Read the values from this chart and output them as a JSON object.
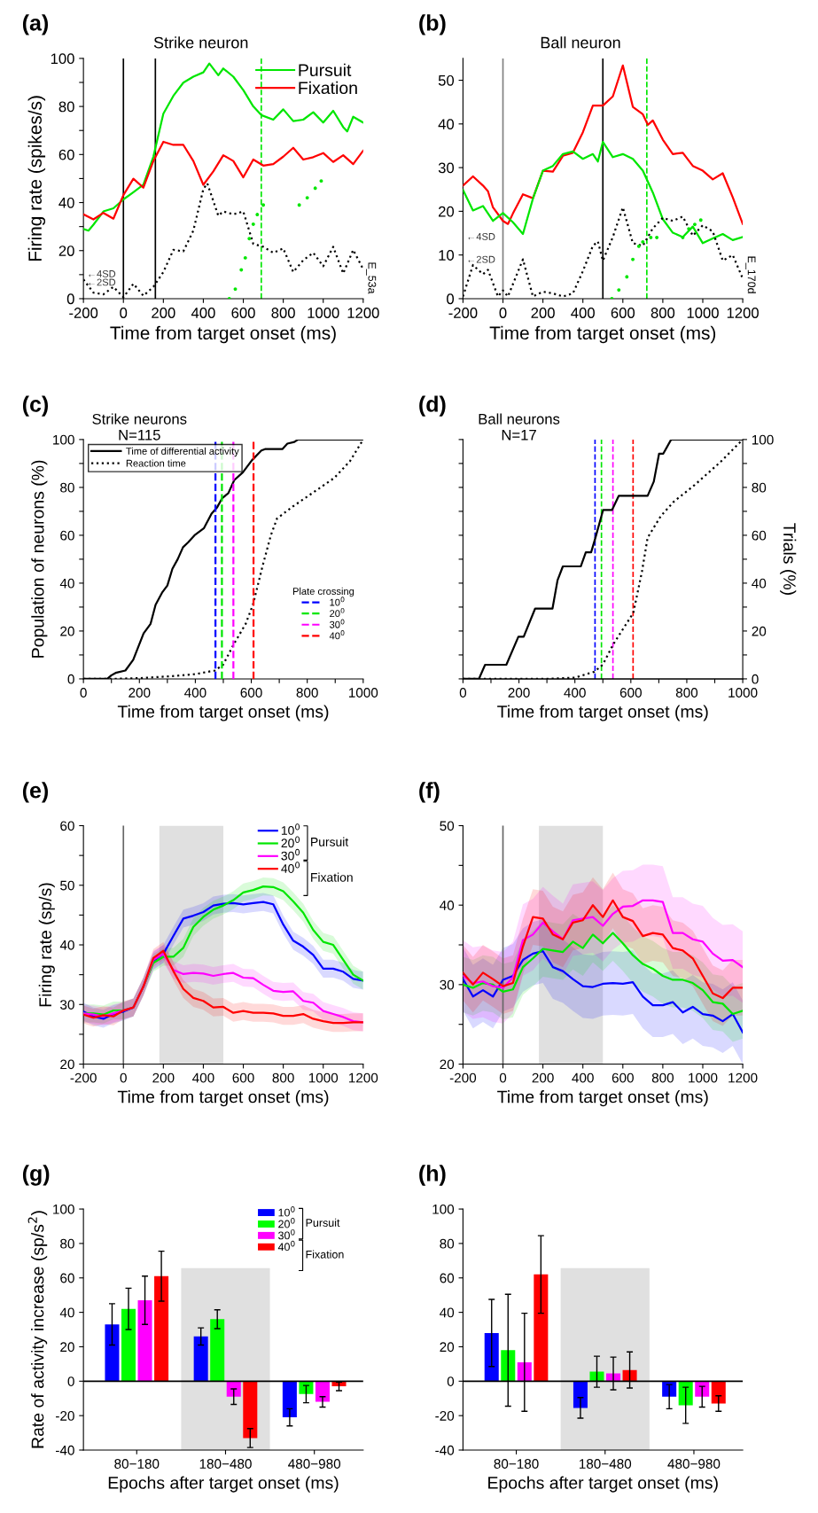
{
  "chart_data": [
    {
      "type": "line",
      "title": "(a)",
      "subtitle": "Strike neuron",
      "xlabel": "Time from target onset (ms)",
      "ylabel": "Firing rate (spikes/s)",
      "xlim": [
        -200,
        1200
      ],
      "xticks": [
        -200,
        0,
        200,
        400,
        600,
        800,
        1000,
        1200
      ],
      "ylim": [
        0,
        100
      ],
      "yticks": [
        0,
        {
          "value": 10,
          "label": null
        },
        20,
        {
          "value": 30,
          "label": null
        },
        40,
        {
          "value": 50,
          "label": null
        },
        60,
        {
          "value": 70,
          "label": null
        },
        80,
        {
          "value": 90,
          "label": null
        },
        100
      ],
      "legend": "top right",
      "series": [
        {
          "name": "Pursuit",
          "color": "#00e600",
          "x": [
            -200,
            -175,
            -150,
            -100,
            -50,
            0,
            50,
            100,
            150,
            200,
            250,
            300,
            350,
            400,
            430,
            475,
            500,
            550,
            600,
            650,
            690,
            750,
            800,
            850,
            900,
            950,
            1000,
            1050,
            1100,
            1120,
            1150,
            1200
          ],
          "values": [
            29,
            28.3,
            30.8,
            36.3,
            37.6,
            41.3,
            44.3,
            47.4,
            59.1,
            77,
            84.4,
            89.9,
            92.4,
            94.2,
            97.9,
            93,
            95.8,
            92.4,
            86.8,
            80,
            76.4,
            74.5,
            78.8,
            73.9,
            74.5,
            77.6,
            73.3,
            78.2,
            71.4,
            69.6,
            75.7,
            73.3
          ]
        },
        {
          "name": "Fixation",
          "color": "#ff0000",
          "x": [
            -200,
            -150,
            -100,
            -50,
            0,
            50,
            100,
            150,
            200,
            250,
            300,
            350,
            400,
            450,
            500,
            550,
            600,
            650,
            700,
            750,
            800,
            850,
            900,
            950,
            1000,
            1050,
            1100,
            1150,
            1200
          ],
          "values": [
            35.1,
            33,
            35.7,
            33.3,
            43.1,
            49.9,
            46.2,
            57.3,
            65.3,
            64,
            64,
            57.3,
            47.4,
            53,
            59.7,
            57.3,
            50.5,
            57.9,
            55.4,
            56,
            59.1,
            62.8,
            57.9,
            58.9,
            60.6,
            56.9,
            59.7,
            56,
            61.6
          ]
        },
        {
          "color": "#000000",
          "line_style": "dotted",
          "x": [
            -200,
            -150,
            -100,
            -50,
            0,
            50,
            100,
            150,
            200,
            250,
            300,
            350,
            400,
            420,
            475,
            500,
            550,
            600,
            650,
            700,
            750,
            800,
            850,
            900,
            950,
            1000,
            1050,
            1100,
            1150,
            1200
          ],
          "values": [
            8,
            2.5,
            1.8,
            4.9,
            0.6,
            6.2,
            1.2,
            4.9,
            11.1,
            20.3,
            19.7,
            28.3,
            45.6,
            48,
            34.5,
            36.3,
            35.1,
            36.3,
            22.8,
            21.6,
            19.1,
            20.9,
            11.1,
            16,
            19.1,
            13.5,
            21.6,
            10.5,
            20.3,
            12.3
          ]
        },
        {
          "type": "scatter",
          "marker": "circle",
          "color": "#00e600",
          "x": [
            530,
            560,
            590,
            610,
            630,
            650,
            670,
            700,
            880,
            920,
            960,
            990
          ],
          "values": [
            0,
            4,
            12,
            17,
            25,
            31,
            35,
            39,
            39,
            42,
            46,
            49
          ]
        }
      ],
      "ref_lines": [
        {
          "axis": "x",
          "value": 0,
          "color": "#000000"
        },
        {
          "axis": "x",
          "value": 160,
          "color": "#000000"
        },
        {
          "axis": "x",
          "value": 690,
          "color": "#00e600",
          "line_style": "dashed"
        }
      ],
      "annotations": [
        "←4SD",
        "←2SD",
        "E_53a"
      ]
    },
    {
      "type": "line",
      "title": "(b)",
      "subtitle": "Ball neuron",
      "xlabel": "Time from target onset (ms)",
      "xlim": [
        -200,
        1200
      ],
      "xticks": [
        -200,
        0,
        200,
        400,
        600,
        800,
        1000,
        1200
      ],
      "ylim": [
        0,
        55
      ],
      "yticks": [
        0,
        10,
        20,
        30,
        40,
        50
      ],
      "series": [
        {
          "color": "#ff0000",
          "x": [
            -200,
            -150,
            -100,
            -75,
            -50,
            0,
            25,
            50,
            100,
            150,
            200,
            250,
            300,
            350,
            400,
            450,
            500,
            550,
            600,
            650,
            700,
            725,
            750,
            800,
            850,
            900,
            950,
            1000,
            1050,
            1100,
            1150,
            1200
          ],
          "values": [
            25.9,
            28,
            25.9,
            24.6,
            20.9,
            17.8,
            17.1,
            19.5,
            23.9,
            23,
            29.3,
            29.1,
            32.7,
            33.4,
            38.1,
            44.2,
            44.2,
            46.3,
            53.4,
            43.9,
            42.2,
            39.8,
            40.8,
            36.4,
            33.1,
            33.4,
            30.4,
            29.3,
            27.3,
            28.7,
            23.2,
            17.1
          ]
        },
        {
          "color": "#00e600",
          "x": [
            -200,
            -150,
            -100,
            -50,
            0,
            50,
            100,
            150,
            200,
            250,
            300,
            350,
            400,
            450,
            475,
            500,
            550,
            600,
            650,
            700,
            750,
            800,
            850,
            900,
            950,
            1000,
            1050,
            1100,
            1150,
            1200
          ],
          "values": [
            24.9,
            20.2,
            21.2,
            17.8,
            19.6,
            17.5,
            14.8,
            22.9,
            29.3,
            30.4,
            33.1,
            33.7,
            32,
            33.1,
            31.4,
            35.9,
            32.4,
            33.1,
            32,
            29.3,
            24.3,
            18.2,
            15.1,
            14.1,
            16.5,
            12.7,
            13.8,
            14.8,
            13.4,
            14.1
          ]
        },
        {
          "color": "#000000",
          "line_style": "dotted",
          "x": [
            -200,
            -150,
            -100,
            -75,
            -25,
            0,
            25,
            100,
            150,
            200,
            250,
            300,
            350,
            400,
            450,
            475,
            500,
            550,
            600,
            650,
            700,
            750,
            800,
            850,
            900,
            950,
            1000,
            1050,
            1100,
            1150,
            1200
          ],
          "values": [
            0.5,
            7.7,
            5.6,
            6.6,
            0.5,
            1.9,
            0.5,
            9,
            0.5,
            1.6,
            1.2,
            0.5,
            1.2,
            6.3,
            12.1,
            13.1,
            8.7,
            14.1,
            20.9,
            12.7,
            12.1,
            16.1,
            18.5,
            17.8,
            18.8,
            14.4,
            16.8,
            15.4,
            8.7,
            10,
            4.6
          ]
        },
        {
          "type": "scatter",
          "marker": "circle",
          "color": "#00e600",
          "x": [
            545,
            580,
            620,
            650,
            680,
            700,
            740,
            770,
            900,
            930,
            960,
            990
          ],
          "values": [
            0,
            2,
            5,
            9,
            12,
            13,
            14,
            14,
            14,
            16,
            17,
            18
          ]
        }
      ],
      "ref_lines": [
        {
          "axis": "x",
          "value": 0,
          "color": "#808080"
        },
        {
          "axis": "x",
          "value": 500,
          "color": "#000000"
        },
        {
          "axis": "x",
          "value": 720,
          "color": "#00e600",
          "line_style": "dashed"
        }
      ],
      "annotations": [
        "←4SD",
        "←2SD",
        "E_170d"
      ]
    },
    {
      "type": "line",
      "title": "(c)",
      "subtitle": "Strike neurons\nN=115",
      "xlabel": "Time from target onset (ms)",
      "ylabel": "Population of neurons (%)",
      "xlim": [
        0,
        1000
      ],
      "xticks": [
        0,
        {
          "value": 100,
          "label": null
        },
        200,
        {
          "value": 300,
          "label": null
        },
        400,
        {
          "value": 500,
          "label": null
        },
        600,
        {
          "value": 700,
          "label": null
        },
        800,
        {
          "value": 900,
          "label": null
        },
        1000
      ],
      "ylim": [
        0,
        100
      ],
      "yticks": [
        0,
        {
          "value": 10,
          "label": null
        },
        20,
        {
          "value": 30,
          "label": null
        },
        40,
        {
          "value": 50,
          "label": null
        },
        60,
        {
          "value": 70,
          "label": null
        },
        80,
        {
          "value": 90,
          "label": null
        },
        100
      ],
      "legend": "top left",
      "legend_title": "Plate crossing",
      "series": [
        {
          "name": "Time of differential activity",
          "color": "#000000",
          "x": [
            0,
            85,
            100,
            115,
            150,
            178,
            215,
            240,
            258,
            281,
            300,
            318,
            337,
            356,
            374,
            397,
            431,
            458,
            477,
            496,
            518,
            539,
            570,
            602,
            636,
            649,
            711,
            729,
            754,
            767,
            1000
          ],
          "values": [
            0,
            0,
            1.5,
            2.5,
            3.5,
            8,
            19,
            23,
            31,
            36,
            39,
            46,
            50,
            55,
            57,
            60,
            63,
            69,
            71.5,
            75.5,
            77.6,
            83,
            86.3,
            91.3,
            95.4,
            96,
            96,
            98.3,
            99,
            100,
            100
          ]
        },
        {
          "name": "Reaction time",
          "color": "#000000",
          "line_style": "dotted",
          "x": [
            0,
            100,
            200,
            300,
            400,
            470,
            500,
            535,
            580,
            606,
            640,
            670,
            692,
            748,
            823,
            897,
            953,
            1000
          ],
          "values": [
            0,
            0,
            0.3,
            1,
            2,
            3.5,
            6,
            14,
            23,
            31,
            47,
            60,
            67,
            72,
            78,
            84,
            91,
            100
          ]
        },
        {
          "name": "10$^{0}$",
          "color": "#0000ff",
          "line_style": "dashed",
          "x": [
            472,
            472
          ],
          "values": [
            0,
            100
          ]
        },
        {
          "name": "20$^{0}$",
          "color": "#00e600",
          "line_style": "dashed",
          "x": [
            495,
            495
          ],
          "values": [
            0,
            100
          ]
        },
        {
          "name": "30$^{0}$",
          "color": "#ff00ff",
          "line_style": "dashed",
          "x": [
            536,
            536
          ],
          "values": [
            0,
            100
          ]
        },
        {
          "name": "40$^{0}$",
          "color": "#ff0000",
          "line_style": "dashed",
          "x": [
            608,
            608
          ],
          "values": [
            0,
            100
          ]
        }
      ]
    },
    {
      "type": "line",
      "title": "(d)",
      "subtitle": "Ball neurons\nN=17",
      "xlabel": "Time from target onset (ms)",
      "y2label": "Trials (%)",
      "xlim": [
        0,
        1000
      ],
      "xticks": [
        0,
        {
          "value": 100,
          "label": null
        },
        200,
        {
          "value": 300,
          "label": null
        },
        400,
        {
          "value": 500,
          "label": null
        },
        600,
        {
          "value": 700,
          "label": null
        },
        800,
        {
          "value": 900,
          "label": null
        },
        1000
      ],
      "y2lim": [
        0,
        100
      ],
      "y2ticks": [
        0,
        {
          "value": 10,
          "label": null
        },
        20,
        {
          "value": 30,
          "label": null
        },
        40,
        {
          "value": 50,
          "label": null
        },
        60,
        {
          "value": 70,
          "label": null
        },
        80,
        {
          "value": 90,
          "label": null
        },
        100
      ],
      "series": [
        {
          "color": "#000000",
          "axis": "y2",
          "x": [
            0,
            57,
            79,
            155,
            198,
            217,
            258,
            320,
            338,
            357,
            421,
            439,
            458,
            473,
            501,
            533,
            557,
            660,
            682,
            701,
            716,
            744,
            1000
          ],
          "values": [
            0,
            0,
            5.9,
            5.9,
            17.6,
            17.6,
            29.4,
            29.4,
            41.2,
            47,
            47,
            52.9,
            52.9,
            58.8,
            70.6,
            70.6,
            76.5,
            76.5,
            82.4,
            94.1,
            94.1,
            100,
            100
          ]
        },
        {
          "color": "#000000",
          "line_style": "dotted",
          "axis": "y2",
          "x": [
            0,
            300,
            400,
            470,
            500,
            538,
            609,
            640,
            660,
            707,
            753,
            828,
            921,
            1000
          ],
          "values": [
            0,
            0,
            0.5,
            3,
            6,
            14.6,
            27.6,
            45,
            59,
            68,
            74,
            81,
            90.7,
            100
          ]
        }
      ],
      "ref_lines": [
        {
          "axis": "x",
          "value": 472,
          "color": "#0000ff",
          "line_style": "dashed"
        },
        {
          "axis": "x",
          "value": 495,
          "color": "#00e600",
          "line_style": "dashed"
        },
        {
          "axis": "x",
          "value": 536,
          "color": "#ff00ff",
          "line_style": "dashed"
        },
        {
          "axis": "x",
          "value": 608,
          "color": "#ff0000",
          "line_style": "dashed"
        }
      ]
    },
    {
      "type": "line",
      "title": "(e)",
      "xlabel": "Time from target onset (ms)",
      "ylabel": "Firing rate (sp/s)",
      "x": [
        -200,
        -150,
        -100,
        -50,
        0,
        50,
        100,
        150,
        200,
        250,
        300,
        350,
        400,
        450,
        500,
        550,
        600,
        650,
        700,
        750,
        800,
        850,
        900,
        950,
        1000,
        1050,
        1100,
        1150,
        1200
      ],
      "xlim": [
        -200,
        1200
      ],
      "xticks": [
        -200,
        0,
        200,
        400,
        600,
        800,
        1000,
        1200
      ],
      "ylim": [
        20,
        60
      ],
      "yticks": [
        20,
        {
          "value": 25,
          "label": null
        },
        30,
        {
          "value": 35,
          "label": null
        },
        40,
        {
          "value": 45,
          "label": null
        },
        50,
        {
          "value": 55,
          "label": null
        },
        60
      ],
      "legend": "top right",
      "series": [
        {
          "name": "10$^{0}$",
          "color": "#0000ff",
          "values": [
            28.8,
            28,
            27.6,
            28.4,
            28.8,
            29.5,
            33,
            37.3,
            38.5,
            41.5,
            44.4,
            44.9,
            45.5,
            46.6,
            46.9,
            47,
            46.8,
            47,
            47.2,
            46.8,
            43.4,
            40.7,
            39.7,
            38.3,
            36,
            36,
            35.5,
            34.3,
            34
          ],
          "lower": [
            27.3,
            26.5,
            26.1,
            26.9,
            27.3,
            28,
            31.5,
            35.8,
            37,
            40,
            42.9,
            43.4,
            44,
            45.1,
            45.4,
            45.5,
            45.3,
            45.5,
            45.7,
            45.3,
            41.9,
            39.2,
            38.2,
            36.8,
            34.5,
            34.5,
            34,
            32.8,
            32.5
          ],
          "upper": [
            30.3,
            29.5,
            29.1,
            29.9,
            30.3,
            31,
            34.5,
            38.8,
            40,
            43,
            45.9,
            46.4,
            47,
            48.1,
            48.4,
            48.5,
            48.3,
            48.5,
            48.7,
            48.3,
            44.9,
            42.2,
            41.2,
            39.8,
            37.5,
            37.5,
            37,
            35.8,
            35.5
          ]
        },
        {
          "name": "20$^{0}$",
          "color": "#00e600",
          "values": [
            28.5,
            28.5,
            28.3,
            29,
            29,
            29.5,
            33,
            37,
            38,
            38,
            39.5,
            43,
            44.7,
            45.9,
            46.6,
            47.5,
            48.8,
            49.2,
            49.8,
            49.7,
            49,
            47.3,
            45.4,
            42.5,
            40.5,
            40,
            37.5,
            35,
            34
          ],
          "lower": [
            27,
            27,
            26.8,
            27.5,
            27.5,
            28,
            31.5,
            35.5,
            36.5,
            36.5,
            38,
            41.5,
            43.2,
            44.4,
            45.1,
            46,
            47.3,
            47.7,
            48.3,
            48.2,
            47.5,
            45.8,
            43.9,
            41,
            39,
            38.5,
            36,
            33.5,
            32.5
          ],
          "upper": [
            30,
            30,
            29.8,
            30.5,
            30.5,
            31,
            34.5,
            38.5,
            39.5,
            39.5,
            41,
            44.5,
            46.2,
            47.4,
            48.1,
            49,
            50.3,
            50.7,
            51.3,
            51.2,
            50.5,
            48.8,
            46.9,
            44,
            42,
            41.5,
            39,
            36.5,
            35.5
          ]
        },
        {
          "name": "30$^{0}$",
          "color": "#ff00ff",
          "values": [
            28.5,
            28.3,
            28,
            28.5,
            29,
            29.5,
            33,
            37.5,
            38.5,
            35.8,
            35.1,
            35.3,
            35.2,
            34.8,
            35.1,
            35.3,
            34.5,
            34.4,
            33.3,
            32.3,
            32.1,
            32.2,
            30.6,
            30.3,
            28.9,
            28.4,
            27.9,
            27.2,
            27
          ],
          "lower": [
            27,
            26.8,
            26.5,
            27,
            27.5,
            28,
            31.5,
            36,
            37,
            34.3,
            33.6,
            33.8,
            33.7,
            33.3,
            33.6,
            33.8,
            33,
            32.9,
            31.8,
            30.8,
            30.6,
            30.7,
            29.1,
            28.8,
            27.4,
            26.9,
            26.4,
            25.7,
            25.5
          ],
          "upper": [
            30,
            29.8,
            29.5,
            30,
            30.5,
            31,
            34.5,
            39,
            40,
            37.3,
            36.6,
            36.8,
            36.7,
            36.3,
            36.6,
            36.8,
            36,
            35.9,
            34.8,
            33.8,
            33.6,
            33.7,
            32.1,
            31.8,
            30.4,
            29.9,
            29.4,
            28.7,
            28.5
          ]
        },
        {
          "name": "40$^{0}$",
          "color": "#ff0000",
          "values": [
            28.3,
            27.8,
            28.2,
            28,
            29,
            29.5,
            33,
            37.8,
            39,
            35.6,
            32.6,
            31.1,
            30.6,
            29.5,
            29.6,
            28.6,
            28.9,
            28.6,
            28.6,
            28.5,
            28.1,
            28.1,
            28.4,
            27.6,
            27.2,
            26.9,
            26.9,
            27,
            27
          ],
          "lower": [
            26.8,
            26.3,
            26.7,
            26.5,
            27.5,
            28,
            31.5,
            36.3,
            37.5,
            34.1,
            31.1,
            29.6,
            29.1,
            28,
            28.1,
            27.1,
            27.4,
            27.1,
            27.1,
            27,
            26.6,
            26.6,
            26.9,
            26.1,
            25.7,
            25.4,
            25.4,
            25.5,
            25.5
          ],
          "upper": [
            29.8,
            29.3,
            29.7,
            29.5,
            30.5,
            31,
            34.5,
            39.3,
            40.5,
            37.1,
            34.1,
            32.6,
            32.1,
            31,
            31.1,
            30.1,
            30.4,
            30.1,
            30.1,
            30,
            29.6,
            29.6,
            29.9,
            29.1,
            28.7,
            28.4,
            28.4,
            28.5,
            28.5
          ]
        }
      ],
      "ref_lines": [
        {
          "axis": "x",
          "value": 0,
          "color": "#666666"
        }
      ],
      "bands": [
        {
          "axis": "x",
          "from": 180,
          "to": 500,
          "color": "#e0e0e0"
        }
      ],
      "annotations": [
        "Pursuit",
        "Fixation"
      ]
    },
    {
      "type": "line",
      "title": "(f)",
      "xlabel": "Time from target onset (ms)",
      "x": [
        -200,
        -150,
        -100,
        -50,
        0,
        50,
        100,
        150,
        200,
        250,
        300,
        350,
        400,
        450,
        500,
        550,
        600,
        650,
        700,
        750,
        800,
        850,
        900,
        950,
        1000,
        1050,
        1100,
        1150,
        1200
      ],
      "xlim": [
        -200,
        1200
      ],
      "xticks": [
        -200,
        0,
        200,
        400,
        600,
        800,
        1000,
        1200
      ],
      "ylim": [
        20,
        50
      ],
      "yticks": [
        20,
        {
          "value": 25,
          "label": null
        },
        30,
        {
          "value": 35,
          "label": null
        },
        40,
        {
          "value": 45,
          "label": null
        },
        50
      ],
      "series": [
        {
          "color": "#0000ff",
          "values": [
            30.7,
            28.5,
            29.3,
            28.5,
            30.6,
            31.1,
            33.1,
            33.9,
            34.2,
            32.2,
            31.7,
            30.7,
            29.8,
            29.7,
            30.1,
            30.2,
            30.1,
            30.3,
            28.5,
            27.4,
            27.4,
            27.8,
            26.5,
            27.2,
            26.3,
            26.1,
            25.4,
            26.3,
            24
          ],
          "lower": [
            26.7,
            24.5,
            25.3,
            24.5,
            26.6,
            27.1,
            29.1,
            29.9,
            30.2,
            28.2,
            27.7,
            26.7,
            25.8,
            25.7,
            26.1,
            26.2,
            26.1,
            26.3,
            24.5,
            23.4,
            23.4,
            23.8,
            22.5,
            23.2,
            22.3,
            22.1,
            21.4,
            22.3,
            20
          ],
          "upper": [
            34.7,
            32.5,
            33.3,
            32.5,
            34.6,
            35.1,
            37.1,
            37.9,
            38.2,
            36.2,
            35.7,
            34.7,
            33.8,
            33.7,
            34.1,
            34.2,
            34.1,
            34.3,
            32.5,
            31.4,
            31.4,
            31.8,
            30.5,
            31.2,
            30.3,
            30.1,
            29.4,
            30.3,
            28
          ]
        },
        {
          "color": "#00e600",
          "values": [
            30,
            29.6,
            30.2,
            30,
            29.1,
            29.4,
            32.2,
            33.3,
            34.5,
            34.3,
            34.1,
            35.4,
            34.6,
            36.3,
            35.2,
            36.5,
            35.2,
            33.7,
            32.6,
            32,
            31.1,
            30.6,
            30.6,
            30.2,
            29.3,
            27.8,
            27.6,
            26.3,
            26.7
          ],
          "lower": [
            26.5,
            26.1,
            26.7,
            26.5,
            25.6,
            25.9,
            28.7,
            29.8,
            31,
            30.8,
            30.6,
            31.9,
            31.1,
            32.8,
            31.7,
            33,
            31.7,
            30.2,
            29.1,
            28.5,
            27.6,
            27.1,
            27.1,
            26.7,
            25.8,
            24.3,
            24.1,
            22.8,
            23.2
          ],
          "upper": [
            33.5,
            33.1,
            33.7,
            33.5,
            32.6,
            32.9,
            35.7,
            36.8,
            38,
            37.8,
            37.6,
            38.9,
            38.1,
            39.8,
            38.7,
            40,
            38.7,
            37.2,
            36.1,
            35.5,
            34.6,
            34.1,
            34.1,
            33.7,
            32.8,
            31.3,
            31.1,
            29.8,
            30.2
          ]
        },
        {
          "color": "#ff00ff",
          "values": [
            31.1,
            30.2,
            30.4,
            29.8,
            29.6,
            30.9,
            35.6,
            36.3,
            37.8,
            36.7,
            35.7,
            38.1,
            38.3,
            38.5,
            37.4,
            38.9,
            39.8,
            39.9,
            40.6,
            40.6,
            40.4,
            36.5,
            36.5,
            35.7,
            35.4,
            33.9,
            33,
            33.1,
            32.2
          ],
          "lower": [
            26.6,
            25.7,
            25.9,
            25.3,
            25.1,
            26.4,
            31.1,
            31.8,
            33.3,
            32.2,
            31.2,
            33.6,
            33.8,
            34,
            32.9,
            34.4,
            35.3,
            35.4,
            36.1,
            36.1,
            35.9,
            32,
            32,
            31.2,
            30.9,
            29.4,
            28.5,
            28.6,
            27.7
          ],
          "upper": [
            35.6,
            34.7,
            34.9,
            34.3,
            34.1,
            35.4,
            40.1,
            40.8,
            42.3,
            41.2,
            40.2,
            42.6,
            42.8,
            43,
            41.9,
            43.4,
            44.3,
            44.4,
            45.1,
            45.1,
            44.9,
            41,
            41,
            40.2,
            39.9,
            38.4,
            37.5,
            37.6,
            36.7
          ]
        },
        {
          "color": "#ff0000",
          "values": [
            31.5,
            30,
            31.5,
            30.7,
            29.8,
            30.2,
            34.8,
            38.5,
            38.3,
            36.3,
            35.7,
            37.8,
            38.1,
            40,
            38.5,
            40.6,
            38.5,
            38,
            36.1,
            36.5,
            36.3,
            34.6,
            34.3,
            33.3,
            31.1,
            28.9,
            28.3,
            29.6,
            29.6
          ],
          "lower": [
            28,
            26.5,
            28,
            27.2,
            26.3,
            26.7,
            31.3,
            35,
            34.8,
            32.8,
            32.2,
            34.3,
            34.6,
            36.5,
            35,
            37.1,
            35,
            34.5,
            32.6,
            33,
            32.8,
            31.1,
            30.8,
            29.8,
            27.6,
            25.4,
            24.8,
            26.1,
            26.1
          ],
          "upper": [
            35,
            33.5,
            35,
            34.2,
            33.3,
            33.7,
            38.3,
            42,
            41.8,
            39.8,
            39.2,
            41.3,
            41.6,
            43.5,
            42,
            44.1,
            42,
            41.5,
            39.6,
            40,
            39.8,
            38.1,
            37.8,
            36.8,
            34.6,
            32.4,
            31.8,
            33.1,
            33.1
          ]
        }
      ],
      "ref_lines": [
        {
          "axis": "x",
          "value": 0,
          "color": "#666666"
        }
      ],
      "bands": [
        {
          "axis": "x",
          "from": 180,
          "to": 500,
          "color": "#e0e0e0"
        }
      ]
    },
    {
      "type": "bar",
      "title": "(g)",
      "xlabel": "Epochs after target onset (ms)",
      "ylabel": "Rate of activity increase (sp/s$^{2}$)",
      "categories": [
        "80−180",
        "180−480",
        "480−980"
      ],
      "ylim": [
        -40,
        100
      ],
      "yticks": [
        -40,
        -20,
        0,
        20,
        40,
        60,
        80,
        100
      ],
      "legend": "top right",
      "series": [
        {
          "name": "10$^{0}$",
          "color": "#0000ff",
          "values": [
            33,
            26,
            -21
          ],
          "errors": [
            12,
            5,
            5
          ]
        },
        {
          "name": "20$^{0}$",
          "color": "#00ff00",
          "values": [
            42,
            36,
            -7.5
          ],
          "errors": [
            12,
            5.5,
            5
          ]
        },
        {
          "name": "30$^{0}$",
          "color": "#ff00ff",
          "values": [
            47,
            -9,
            -12
          ],
          "errors": [
            14,
            4.5,
            3
          ]
        },
        {
          "name": "40$^{0}$",
          "color": "#ff0000",
          "values": [
            61,
            -33,
            -3
          ],
          "errors": [
            14.5,
            5.5,
            2.5
          ]
        }
      ],
      "ref_lines": [
        {
          "axis": "y",
          "value": 0,
          "color": "#000000"
        }
      ],
      "bands": [
        {
          "axis": "x",
          "from": "180−480",
          "to": "180−480",
          "color": "#e0e0e0"
        }
      ],
      "annotations": [
        "Pursuit",
        "Fixation"
      ]
    },
    {
      "type": "bar",
      "title": "(h)",
      "xlabel": "Epochs after target onset (ms)",
      "categories": [
        "80−180",
        "180−480",
        "480−980"
      ],
      "ylim": [
        -40,
        100
      ],
      "yticks": [
        -40,
        -20,
        0,
        20,
        40,
        60,
        80,
        100
      ],
      "series": [
        {
          "color": "#0000ff",
          "values": [
            28,
            -15.5,
            -9
          ],
          "errors": [
            19.5,
            6,
            7
          ]
        },
        {
          "color": "#00ff00",
          "values": [
            18,
            5.5,
            -14
          ],
          "errors": [
            32.5,
            9,
            10.5
          ]
        },
        {
          "color": "#ff00ff",
          "values": [
            11,
            4.5,
            -9
          ],
          "errors": [
            28.5,
            9.5,
            6
          ]
        },
        {
          "color": "#ff0000",
          "values": [
            62,
            6.5,
            -13
          ],
          "errors": [
            22.5,
            10.5,
            4.5
          ]
        }
      ],
      "ref_lines": [
        {
          "axis": "y",
          "value": 0,
          "color": "#000000"
        }
      ],
      "bands": [
        {
          "axis": "x",
          "from": "180−480",
          "to": "180−480",
          "color": "#e0e0e0"
        }
      ]
    }
  ]
}
